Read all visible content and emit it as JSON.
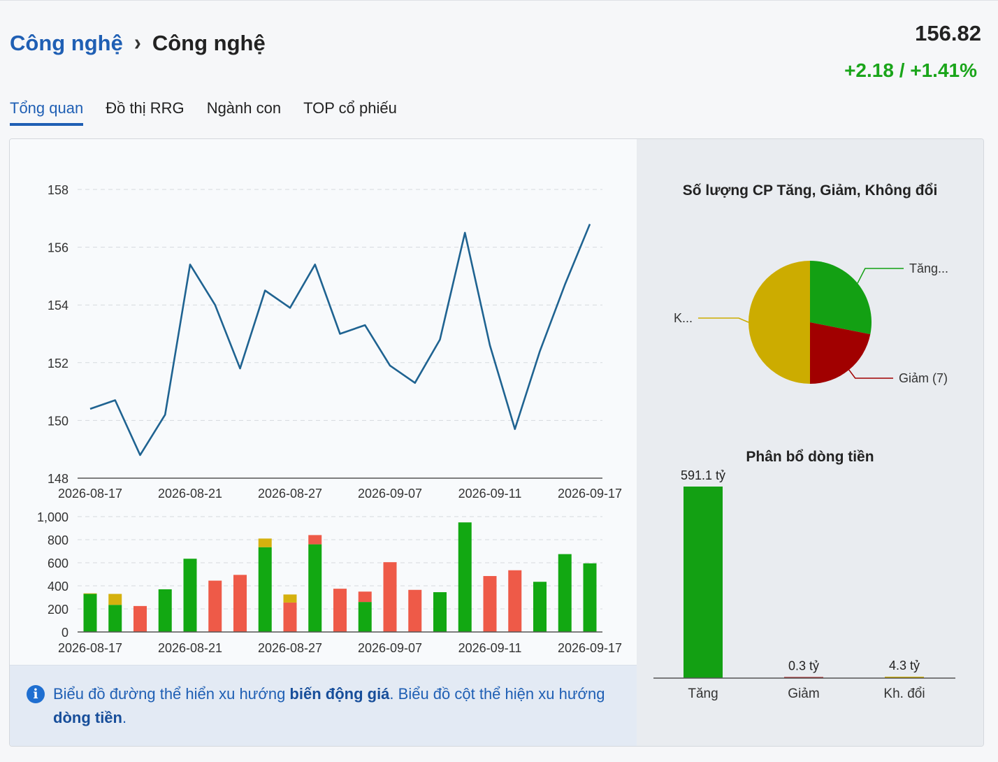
{
  "breadcrumb": {
    "parent": "Công nghệ",
    "separator": "›",
    "current": "Công nghệ"
  },
  "quote": {
    "price": "156.82",
    "change": "+2.18 / +1.41%",
    "change_color": "#1aa51a"
  },
  "tabs": [
    {
      "label": "Tổng quan",
      "active": true
    },
    {
      "label": "Đồ thị RRG",
      "active": false
    },
    {
      "label": "Ngành con",
      "active": false
    },
    {
      "label": "TOP cổ phiếu",
      "active": false
    }
  ],
  "info": {
    "icon": "info-icon",
    "part1": "Biểu đồ đường thể hiển xu hướng ",
    "bold1": "biến động giá",
    "part2": ". Biểu đồ cột thể hiện xu hướng ",
    "bold2": "dòng tiền",
    "part3": "."
  },
  "chart_data": [
    {
      "type": "line",
      "title": "",
      "color": "#1f6391",
      "ylim": [
        148,
        158
      ],
      "y_ticks": [
        "158",
        "156",
        "154",
        "152",
        "150",
        "148"
      ],
      "x_tick_labels": [
        "2026-08-17",
        "2026-08-21",
        "2026-08-27",
        "2026-09-07",
        "2026-09-11",
        "2026-09-17"
      ],
      "values": [
        150.4,
        150.7,
        148.8,
        150.2,
        155.4,
        154.0,
        151.8,
        154.5,
        153.9,
        155.4,
        153.0,
        153.3,
        151.9,
        151.3,
        152.8,
        156.5,
        152.6,
        149.7,
        152.4,
        154.7,
        156.8
      ]
    },
    {
      "type": "bar",
      "stacked": true,
      "ylim": [
        0,
        1000
      ],
      "y_ticks": [
        "1,000",
        "800",
        "600",
        "400",
        "200",
        "0"
      ],
      "x_tick_labels": [
        "2026-08-17",
        "2026-08-21",
        "2026-08-27",
        "2026-09-07",
        "2026-09-11",
        "2026-09-17"
      ],
      "colors": {
        "up": "#12a812",
        "down": "#ee5a48",
        "flat": "#d5b10e"
      },
      "series": [
        {
          "key": "up",
          "values": [
            330,
            235,
            0,
            370,
            635,
            0,
            0,
            735,
            0,
            760,
            0,
            260,
            0,
            0,
            345,
            950,
            0,
            0,
            435,
            675,
            595
          ]
        },
        {
          "key": "down",
          "values": [
            0,
            0,
            225,
            0,
            0,
            445,
            495,
            0,
            255,
            80,
            375,
            90,
            605,
            365,
            0,
            0,
            485,
            535,
            0,
            0,
            0
          ]
        },
        {
          "key": "flat",
          "values": [
            5,
            95,
            0,
            0,
            0,
            0,
            0,
            75,
            70,
            0,
            0,
            0,
            0,
            0,
            0,
            0,
            0,
            0,
            0,
            0,
            0
          ]
        }
      ]
    },
    {
      "type": "pie",
      "title": "Số lượng CP Tăng, Giảm, Không đổi",
      "labels": [
        "Tăng...",
        "Giảm (7)",
        "K..."
      ],
      "values": [
        9,
        7,
        16
      ],
      "colors": [
        "#13a013",
        "#a10000",
        "#ccac00"
      ]
    },
    {
      "type": "bar",
      "title": "Phân bổ dòng tiền",
      "categories": [
        "Tăng",
        "Giảm",
        "Kh. đổi"
      ],
      "values": [
        591.1,
        0.3,
        4.3
      ],
      "value_labels": [
        "591.1 tỷ",
        "0.3 tỷ",
        "4.3 tỷ"
      ],
      "colors": [
        "#13a013",
        "#a10000",
        "#ccac00"
      ]
    }
  ]
}
